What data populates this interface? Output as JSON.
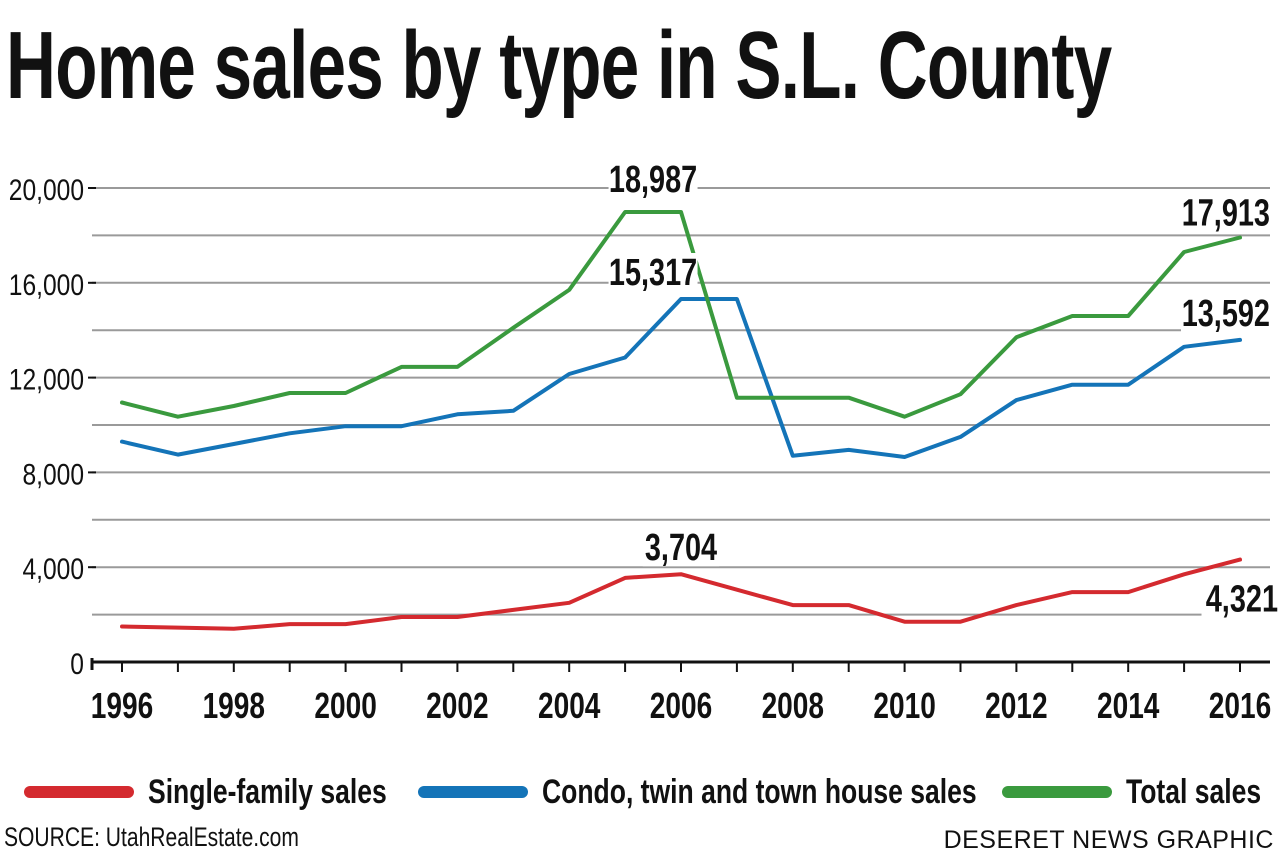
{
  "chart_data": {
    "type": "line",
    "title": "Home sales by type in S.L. County",
    "x": [
      1996,
      1997,
      1998,
      1999,
      2000,
      2001,
      2002,
      2003,
      2004,
      2005,
      2006,
      2007,
      2008,
      2009,
      2010,
      2011,
      2012,
      2013,
      2014,
      2015,
      2016
    ],
    "x_ticks": [
      "1996",
      "1998",
      "2000",
      "2002",
      "2004",
      "2006",
      "2008",
      "2010",
      "2012",
      "2014",
      "2016"
    ],
    "y_ticks": [
      "0",
      "4,000",
      "8,000",
      "12,000",
      "16,000",
      "20,000"
    ],
    "ylim": [
      0,
      20000
    ],
    "xlabel": "",
    "ylabel": "",
    "grid": true,
    "series": [
      {
        "name": "Single-family sales",
        "color": "#d42a2f",
        "values": [
          1500,
          1450,
          1400,
          1600,
          1600,
          1900,
          1900,
          2200,
          2500,
          3550,
          3704,
          3050,
          2400,
          2400,
          1700,
          1700,
          2400,
          2950,
          2950,
          3700,
          4321
        ]
      },
      {
        "name": "Condo, twin and town house sales",
        "color": "#1474b8",
        "values": [
          9300,
          8750,
          9200,
          9650,
          9950,
          9950,
          10450,
          10600,
          12150,
          12850,
          15317,
          15317,
          8700,
          8950,
          8650,
          9500,
          11050,
          11700,
          11700,
          13300,
          13592
        ]
      },
      {
        "name": "Total sales",
        "color": "#3a9a3e",
        "values": [
          10950,
          10350,
          10800,
          11350,
          11350,
          12450,
          12450,
          14100,
          15700,
          18987,
          18987,
          11150,
          11150,
          11150,
          10350,
          11300,
          13700,
          14600,
          14600,
          17300,
          17913
        ]
      }
    ],
    "annotations": [
      {
        "text": "18,987",
        "series": 2,
        "x": 2005.5
      },
      {
        "text": "15,317",
        "series": 1,
        "x": 2005.5
      },
      {
        "text": "3,704",
        "series": 0,
        "x": 2006
      },
      {
        "text": "17,913",
        "series": 2,
        "x": 2016
      },
      {
        "text": "13,592",
        "series": 1,
        "x": 2016
      },
      {
        "text": "4,321",
        "series": 0,
        "x": 2016
      }
    ]
  },
  "legend": [
    {
      "label": "Single-family sales",
      "color": "#d42a2f"
    },
    {
      "label": "Condo, twin and town house sales",
      "color": "#1474b8"
    },
    {
      "label": "Total sales",
      "color": "#3a9a3e"
    }
  ],
  "source": "SOURCE: UtahRealEstate.com",
  "credit": "DESERET NEWS GRAPHIC"
}
